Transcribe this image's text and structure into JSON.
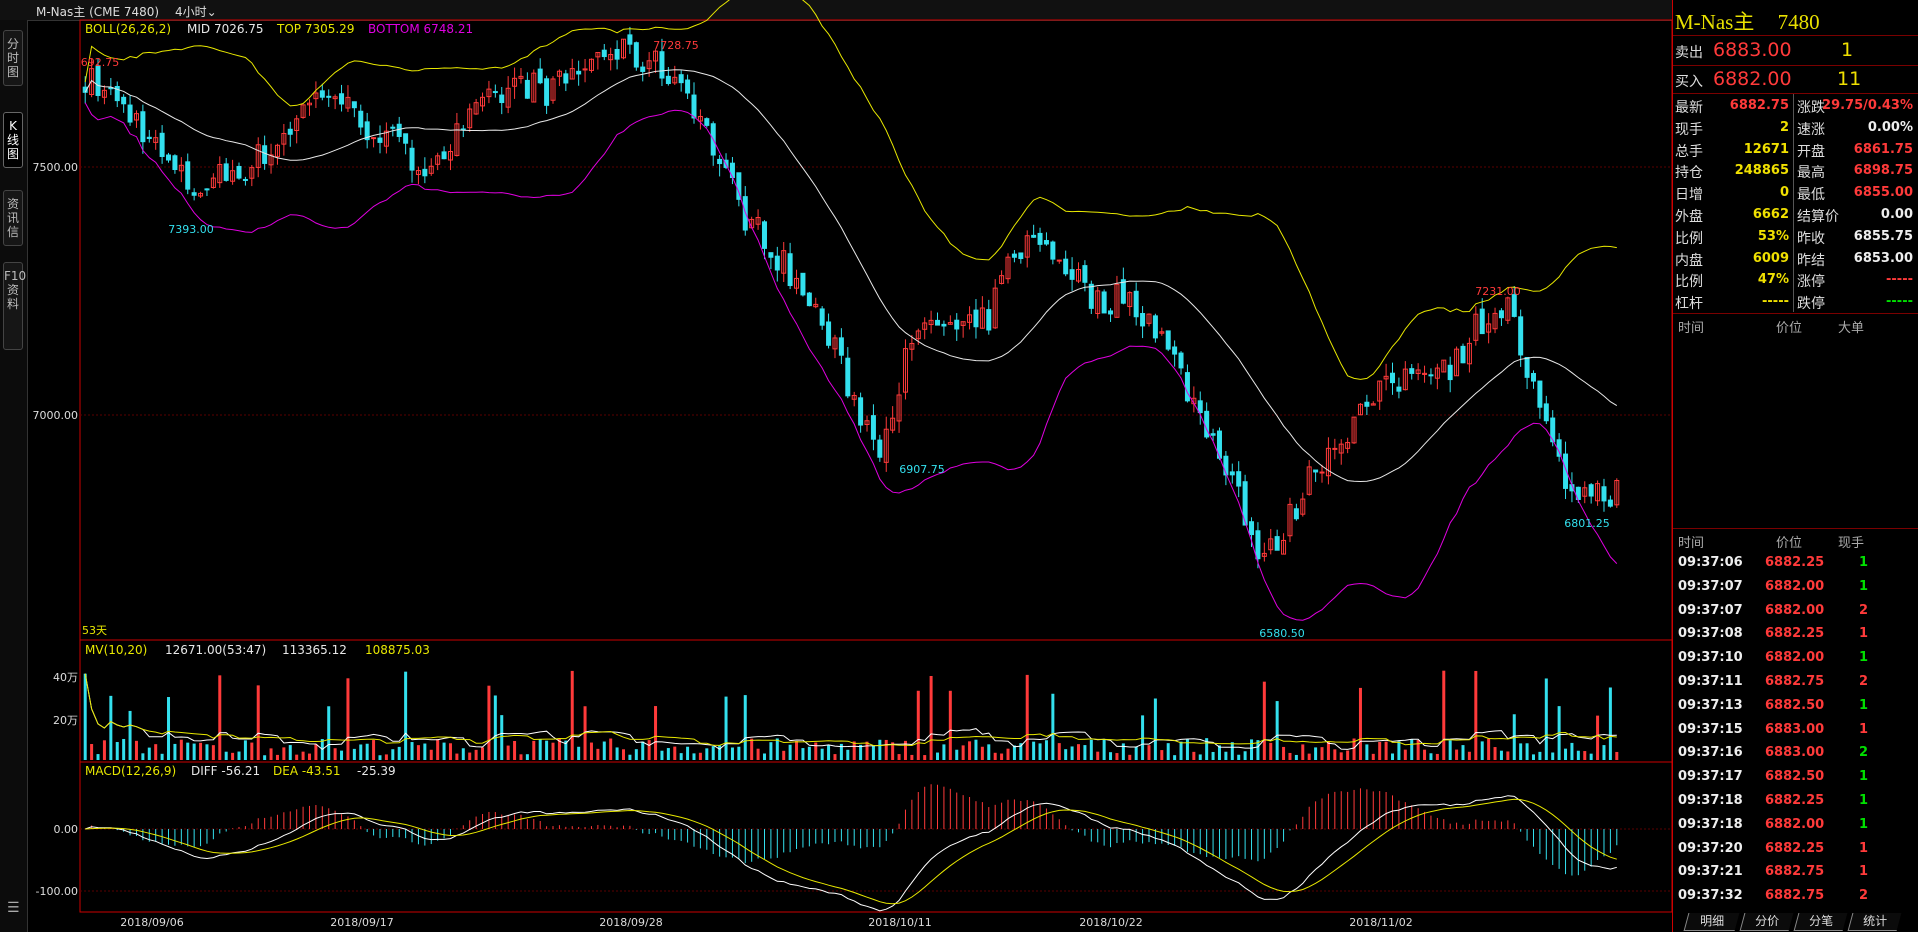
{
  "topbar": {
    "symbol_label": "M-Nas主 (CME 7480)",
    "period_label": "4小时"
  },
  "left_tabs": [
    "分时图",
    "K线图",
    "资讯信",
    "F10资料"
  ],
  "indicators": {
    "boll": {
      "name": "BOLL(26,26,2)",
      "mid": "MID 7026.75",
      "top": "TOP 7305.29",
      "bottom": "BOTTOM 6748.21"
    },
    "mv": {
      "name": "MV(10,20)",
      "vol": "12671.00(53:47)",
      "ma1": "113365.12",
      "ma2": "108875.03"
    },
    "macd": {
      "name": "MACD(12,26,9)",
      "diff": "DIFF -56.21",
      "dea": "DEA -43.51",
      "macd": "-25.39"
    }
  },
  "chart_data": {
    "type": "candlestick",
    "price_axis": {
      "ticks": [
        "7500.00",
        "7000.00"
      ],
      "ylim": [
        6560,
        7760
      ]
    },
    "volume_axis": {
      "ticks": [
        "40万",
        "20万"
      ]
    },
    "macd_axis": {
      "ticks": [
        "0.00",
        "-100.00"
      ],
      "ylim": [
        -160,
        100
      ]
    },
    "x_labels": [
      "2018/09/06",
      "2018/09/17",
      "2018/09/28",
      "2018/10/11",
      "2018/10/22",
      "2018/11/02"
    ],
    "annotations": [
      {
        "text": "7728.75",
        "kind": "high"
      },
      {
        "text": "692.75",
        "kind": "high"
      },
      {
        "text": "7393.00",
        "kind": "low"
      },
      {
        "text": "6907.75",
        "kind": "low"
      },
      {
        "text": "6580.50",
        "kind": "low"
      },
      {
        "text": "7231.00",
        "kind": "high"
      },
      {
        "text": "6801.25",
        "kind": "low"
      }
    ],
    "days_label": "53天",
    "close_path": [
      7650,
      7610,
      7560,
      7480,
      7430,
      7460,
      7480,
      7520,
      7590,
      7630,
      7560,
      7540,
      7480,
      7500,
      7560,
      7610,
      7640,
      7620,
      7660,
      7700,
      7690,
      7670,
      7630,
      7510,
      7390,
      7330,
      7250,
      7170,
      7040,
      6930,
      7100,
      7180,
      7150,
      7180,
      7320,
      7330,
      7280,
      7210,
      7230,
      7180,
      7080,
      6970,
      6880,
      6700,
      6790,
      6900,
      6960,
      7020,
      7060,
      7100,
      7090,
      7180,
      7210,
      7030,
      6870,
      6840,
      6850
    ],
    "colors": {
      "up": "#ff3a3a",
      "down": "#33e0ee",
      "boll_top": "#e8e800",
      "boll_mid": "#e8e8e8",
      "boll_bottom": "#e000e0",
      "ma1": "#ffffff",
      "ma2": "#e8e800"
    }
  },
  "quote": {
    "title": "M-Nas主",
    "code": "7480",
    "sell_label": "卖出",
    "sell_price": "6883.00",
    "sell_qty": "1",
    "buy_label": "买入",
    "buy_price": "6882.00",
    "buy_qty": "11",
    "left": [
      {
        "label": "最新",
        "value": "6882.75",
        "color": "red"
      },
      {
        "label": "现手",
        "value": "2",
        "color": "yel"
      },
      {
        "label": "总手",
        "value": "12671",
        "color": "yel"
      },
      {
        "label": "持仓",
        "value": "248865",
        "color": "yel"
      },
      {
        "label": "日增",
        "value": "0",
        "color": "yel"
      },
      {
        "label": "外盘",
        "value": "6662",
        "color": "yel"
      },
      {
        "label": "比例",
        "value": "53%",
        "color": "yel"
      },
      {
        "label": "内盘",
        "value": "6009",
        "color": "yel"
      },
      {
        "label": "比例",
        "value": "47%",
        "color": "yel"
      },
      {
        "label": "杠杆",
        "value": "-----",
        "color": "yel"
      }
    ],
    "right": [
      {
        "label": "涨跌",
        "value": "29.75/0.43%",
        "color": "red"
      },
      {
        "label": "速涨",
        "value": "0.00%",
        "color": "wht"
      },
      {
        "label": "开盘",
        "value": "6861.75",
        "color": "red"
      },
      {
        "label": "最高",
        "value": "6898.75",
        "color": "red"
      },
      {
        "label": "最低",
        "value": "6855.00",
        "color": "red"
      },
      {
        "label": "结算价",
        "value": "0.00",
        "color": "wht"
      },
      {
        "label": "昨收",
        "value": "6855.75",
        "color": "wht"
      },
      {
        "label": "昨结",
        "value": "6853.00",
        "color": "wht"
      },
      {
        "label": "涨停",
        "value": "-----",
        "color": "red"
      },
      {
        "label": "跌停",
        "value": "-----",
        "color": "grn"
      }
    ]
  },
  "bigorders": {
    "headers": [
      "时间",
      "价位",
      "大单"
    ]
  },
  "ticks": {
    "headers": [
      "时间",
      "价位",
      "现手"
    ],
    "rows": [
      {
        "time": "09:37:06",
        "price": "6882.25",
        "qty": "1",
        "qcolor": "grn"
      },
      {
        "time": "09:37:07",
        "price": "6882.00",
        "qty": "1",
        "qcolor": "grn"
      },
      {
        "time": "09:37:07",
        "price": "6882.00",
        "qty": "2",
        "qcolor": "red"
      },
      {
        "time": "09:37:08",
        "price": "6882.25",
        "qty": "1",
        "qcolor": "red"
      },
      {
        "time": "09:37:10",
        "price": "6882.00",
        "qty": "1",
        "qcolor": "grn"
      },
      {
        "time": "09:37:11",
        "price": "6882.75",
        "qty": "2",
        "qcolor": "red"
      },
      {
        "time": "09:37:13",
        "price": "6882.50",
        "qty": "1",
        "qcolor": "grn"
      },
      {
        "time": "09:37:15",
        "price": "6883.00",
        "qty": "1",
        "qcolor": "red"
      },
      {
        "time": "09:37:16",
        "price": "6883.00",
        "qty": "2",
        "qcolor": "grn"
      },
      {
        "time": "09:37:17",
        "price": "6882.50",
        "qty": "1",
        "qcolor": "grn"
      },
      {
        "time": "09:37:18",
        "price": "6882.25",
        "qty": "1",
        "qcolor": "grn"
      },
      {
        "time": "09:37:18",
        "price": "6882.00",
        "qty": "1",
        "qcolor": "grn"
      },
      {
        "time": "09:37:20",
        "price": "6882.25",
        "qty": "1",
        "qcolor": "red"
      },
      {
        "time": "09:37:21",
        "price": "6882.75",
        "qty": "1",
        "qcolor": "red"
      },
      {
        "time": "09:37:32",
        "price": "6882.75",
        "qty": "2",
        "qcolor": "red"
      }
    ]
  },
  "bottom_tabs": [
    "明细",
    "分价",
    "分笔",
    "统计"
  ]
}
